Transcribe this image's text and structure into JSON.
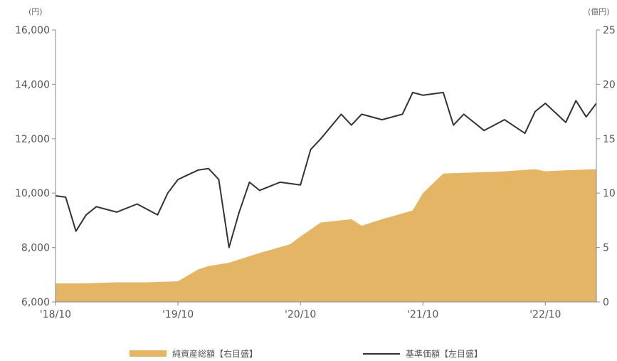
{
  "chart_data": {
    "type": "area+line",
    "left_axis": {
      "unit": "(円)",
      "ylim": [
        6000,
        16000
      ],
      "ticks": [
        "6,000",
        "8,000",
        "10,000",
        "12,000",
        "14,000",
        "16,000"
      ]
    },
    "right_axis": {
      "unit": "(億円)",
      "ylim": [
        0,
        25
      ],
      "ticks": [
        "0",
        "5",
        "10",
        "15",
        "20",
        "25"
      ]
    },
    "x_ticks": [
      "'18/10",
      "'19/10",
      "'20/10",
      "'21/10",
      "'22/10"
    ],
    "x_range": [
      "2018-10",
      "2023-03"
    ],
    "series": [
      {
        "name": "純資産総額【右目盛】",
        "kind": "area",
        "axis": "right",
        "color": "#E4B565",
        "x": [
          "2018-10",
          "2019-01",
          "2019-04",
          "2019-07",
          "2019-10",
          "2019-12",
          "2020-01",
          "2020-03",
          "2020-06",
          "2020-09",
          "2020-10",
          "2020-12",
          "2021-03",
          "2021-04",
          "2021-06",
          "2021-09",
          "2021-10",
          "2021-12",
          "2022-03",
          "2022-06",
          "2022-09",
          "2022-10",
          "2022-12",
          "2023-03"
        ],
        "values": [
          1.7,
          1.7,
          1.8,
          1.8,
          1.9,
          3.0,
          3.3,
          3.6,
          4.5,
          5.3,
          6.0,
          7.3,
          7.6,
          7.0,
          7.6,
          8.4,
          10.0,
          11.8,
          11.9,
          12.0,
          12.2,
          12.0,
          12.1,
          12.2
        ]
      },
      {
        "name": "基準価額【左目盛】",
        "kind": "line",
        "axis": "left",
        "color": "#333333",
        "x": [
          "2018-10",
          "2018-11",
          "2018-12",
          "2019-01",
          "2019-02",
          "2019-04",
          "2019-06",
          "2019-08",
          "2019-09",
          "2019-10",
          "2019-12",
          "2020-01",
          "2020-02",
          "2020-03",
          "2020-04",
          "2020-05",
          "2020-06",
          "2020-08",
          "2020-10",
          "2020-11",
          "2020-12",
          "2021-02",
          "2021-03",
          "2021-04",
          "2021-06",
          "2021-08",
          "2021-09",
          "2021-10",
          "2021-12",
          "2022-01",
          "2022-02",
          "2022-04",
          "2022-06",
          "2022-08",
          "2022-09",
          "2022-10",
          "2022-12",
          "2023-01",
          "2023-02",
          "2023-03"
        ],
        "values": [
          9900,
          9850,
          8600,
          9200,
          9500,
          9300,
          9600,
          9200,
          10000,
          10500,
          10850,
          10900,
          10500,
          8000,
          9300,
          10400,
          10100,
          10400,
          10300,
          11600,
          12000,
          12900,
          12500,
          12900,
          12700,
          12900,
          13700,
          13600,
          13700,
          12500,
          12900,
          12300,
          12700,
          12200,
          13000,
          13300,
          12600,
          13400,
          12800,
          13300
        ]
      }
    ]
  }
}
